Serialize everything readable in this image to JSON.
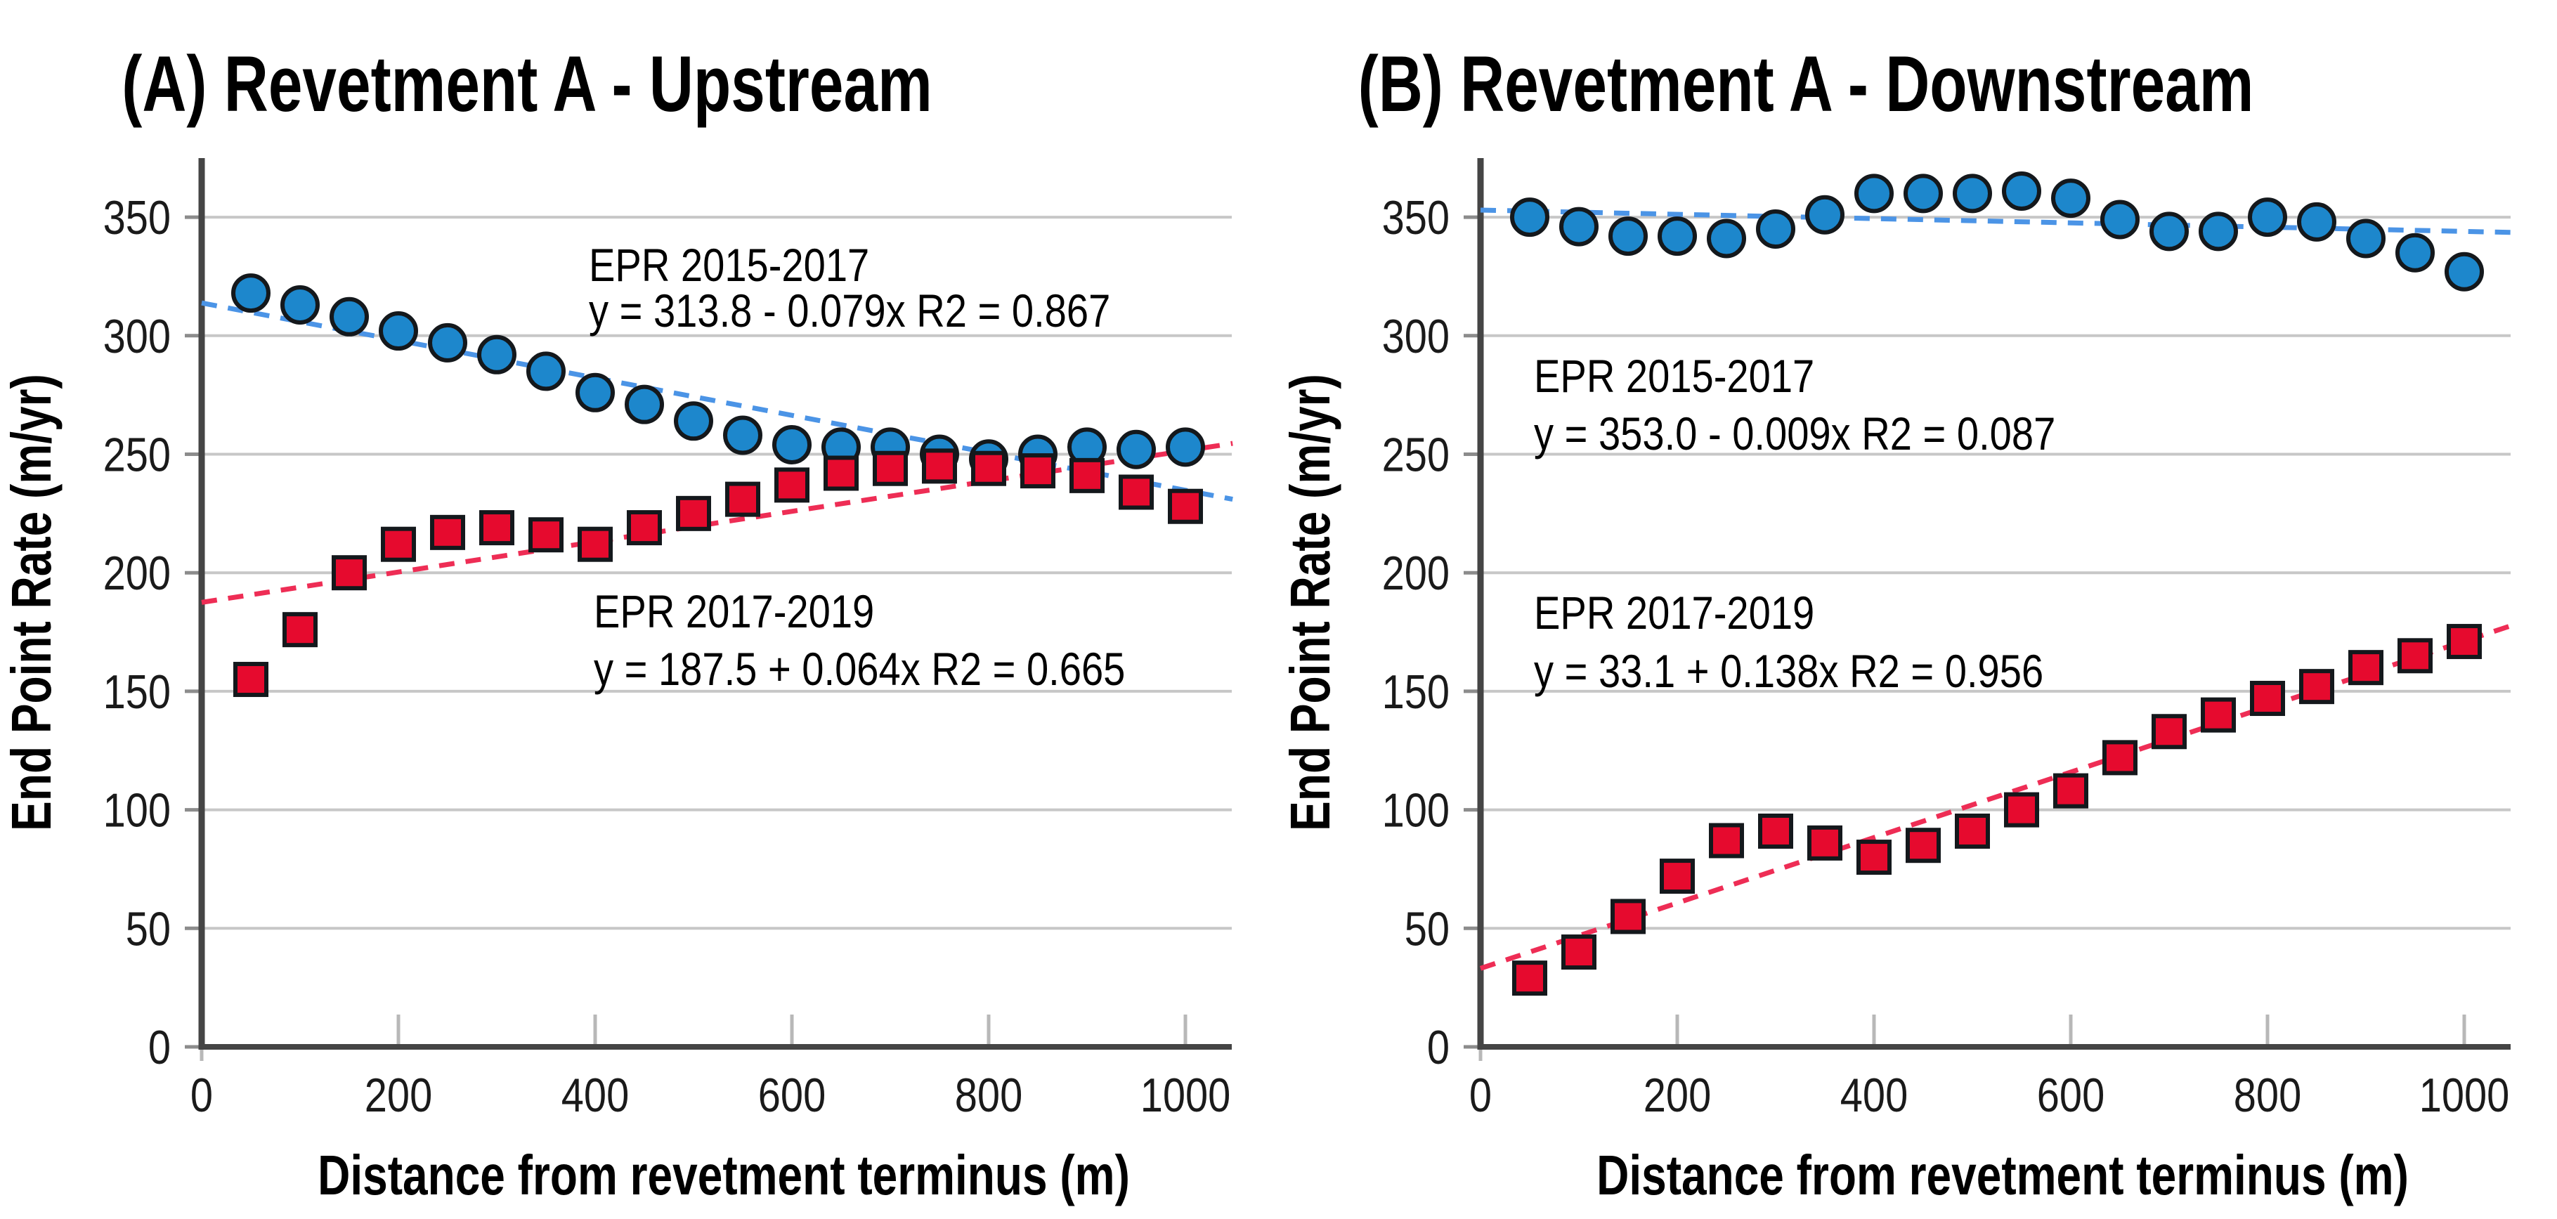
{
  "figure": {
    "background": "#ffffff",
    "description": "Two-panel scatter chart of shoreline End Point Rate versus distance from revetment terminus"
  },
  "colors": {
    "blue_fill": "#1d87cc",
    "blue_trend": "#4b94e6",
    "red_fill": "#e60a2e",
    "red_trend": "#ee2d55",
    "marker_stroke": "#14181c",
    "gridline": "#c7c7c7",
    "axis": "#454545",
    "inner_tick": "#b8b8b8",
    "outer_tick": "#8c8c8c",
    "tick_text": "#1a1a1a",
    "label_text": "#000000"
  },
  "chart_data": [
    {
      "type": "scatter",
      "panel": "A",
      "title": "(A) Revetment A - Upstream",
      "xlabel": "Distance from revetment terminus (m)",
      "ylabel": "End Point Rate (m/yr)",
      "xlim": [
        0,
        1048
      ],
      "ylim": [
        0,
        375
      ],
      "x_ticks": [
        0,
        200,
        400,
        600,
        800,
        1000
      ],
      "y_ticks": [
        0,
        50,
        100,
        150,
        200,
        250,
        300,
        350
      ],
      "grid": "horizontal",
      "legend_position": "none",
      "x": [
        50,
        100,
        150,
        200,
        250,
        300,
        350,
        400,
        450,
        500,
        550,
        600,
        650,
        700,
        750,
        800,
        850,
        900,
        950,
        1000
      ],
      "series": [
        {
          "name": "EPR 2015-2017",
          "marker": "circle",
          "values": [
            318,
            313,
            308,
            302,
            297,
            292,
            285,
            276,
            271,
            264,
            258,
            254,
            253,
            253,
            250,
            248,
            250,
            253,
            252,
            253
          ],
          "trend": {
            "intercept": 313.8,
            "slope": -0.079,
            "r2": 0.867
          }
        },
        {
          "name": "EPR 2017-2019",
          "marker": "square",
          "values": [
            155,
            176,
            200,
            212,
            217,
            219,
            216,
            212,
            219,
            225,
            231,
            237,
            242,
            244,
            245,
            244,
            243,
            241,
            234,
            228
          ],
          "trend": {
            "intercept": 187.5,
            "slope": 0.064,
            "r2": 0.665
          }
        }
      ],
      "annotations": [
        {
          "label": "EPR 2015-2017",
          "equation": "y = 313.8 - 0.079x    R2 = 0.867"
        },
        {
          "label": "EPR 2017-2019",
          "equation": "y = 187.5 + 0.064x    R2 = 0.665"
        }
      ]
    },
    {
      "type": "scatter",
      "panel": "B",
      "title": "(B) Revetment A - Downstream",
      "xlabel": "Distance from revetment terminus (m)",
      "ylabel": "End Point Rate (m/yr)",
      "xlim": [
        0,
        1048
      ],
      "ylim": [
        0,
        375
      ],
      "x_ticks": [
        0,
        200,
        400,
        600,
        800,
        1000
      ],
      "y_ticks": [
        0,
        50,
        100,
        150,
        200,
        250,
        300,
        350
      ],
      "grid": "horizontal",
      "legend_position": "none",
      "x": [
        50,
        100,
        150,
        200,
        250,
        300,
        350,
        400,
        450,
        500,
        550,
        600,
        650,
        700,
        750,
        800,
        850,
        900,
        950,
        1000
      ],
      "series": [
        {
          "name": "EPR 2015-2017",
          "marker": "circle",
          "values": [
            350,
            346,
            342,
            342,
            341,
            345,
            351,
            360,
            360,
            360,
            361,
            358,
            349,
            344,
            344,
            350,
            348,
            341,
            335,
            327
          ],
          "trend": {
            "intercept": 353.0,
            "slope": -0.009,
            "r2": 0.087
          }
        },
        {
          "name": "EPR 2017-2019",
          "marker": "square",
          "values": [
            29,
            40,
            55,
            72,
            87,
            91,
            86,
            80,
            85,
            91,
            100,
            108,
            122,
            133,
            140,
            147,
            152,
            160,
            165,
            171
          ],
          "trend": {
            "intercept": 33.1,
            "slope": 0.138,
            "r2": 0.956
          }
        }
      ],
      "annotations": [
        {
          "label": "EPR 2015-2017",
          "equation": "y = 353.0 - 0.009x    R2 = 0.087"
        },
        {
          "label": "EPR 2017-2019",
          "equation": "y = 33.1 + 0.138x    R2 = 0.956"
        }
      ]
    }
  ]
}
